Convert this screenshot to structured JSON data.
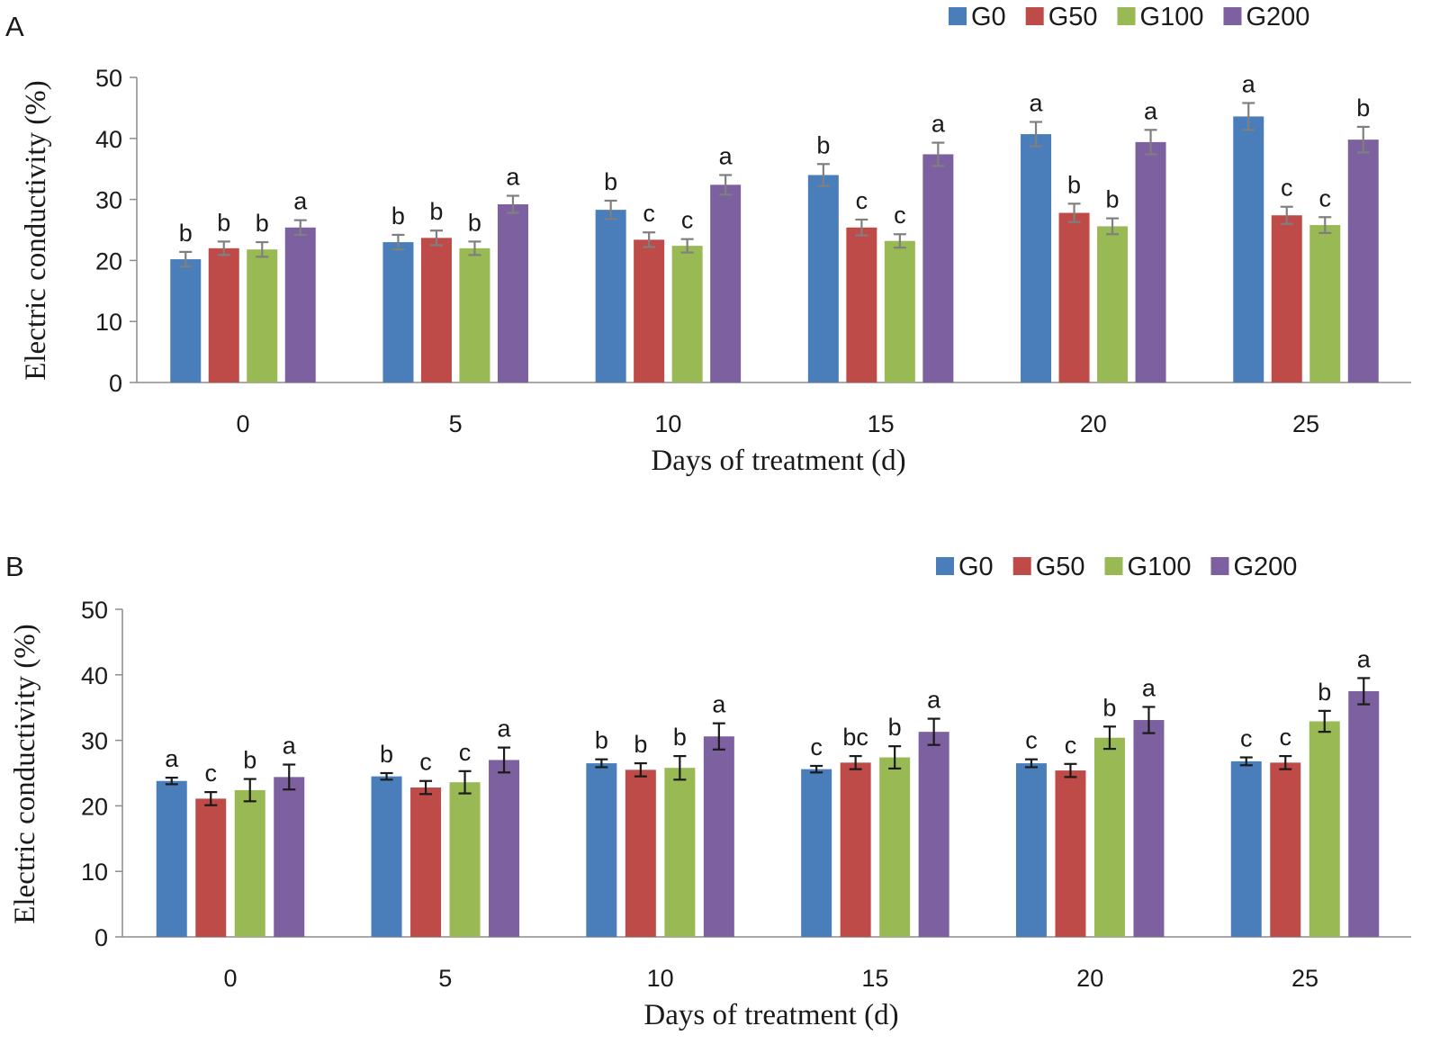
{
  "chart_data": [
    {
      "panel": "A",
      "type": "bar",
      "categories": [
        "0",
        "5",
        "10",
        "15",
        "20",
        "25"
      ],
      "xlabel": "Days of treatment (d)",
      "ylabel": "Electric conductivity (%)",
      "ylim": [
        0,
        50
      ],
      "yticks": [
        0,
        10,
        20,
        30,
        40,
        50
      ],
      "grid": false,
      "legend": "top-right",
      "error_bar_color": "#7f7f7f",
      "series": [
        {
          "name": "G0",
          "color": "#4a7ebb",
          "values": [
            20.2,
            23.0,
            28.3,
            34.0,
            40.7,
            43.6
          ],
          "errors": [
            1.2,
            1.2,
            1.5,
            1.8,
            2.0,
            2.2
          ],
          "letters": [
            "b",
            "b",
            "b",
            "b",
            "a",
            "a"
          ]
        },
        {
          "name": "G50",
          "color": "#be4b48",
          "values": [
            22.0,
            23.7,
            23.4,
            25.4,
            27.8,
            27.4
          ],
          "errors": [
            1.1,
            1.2,
            1.2,
            1.3,
            1.5,
            1.4
          ],
          "letters": [
            "b",
            "b",
            "c",
            "c",
            "b",
            "c"
          ]
        },
        {
          "name": "G100",
          "color": "#98b954",
          "values": [
            21.8,
            22.0,
            22.4,
            23.2,
            25.6,
            25.8
          ],
          "errors": [
            1.2,
            1.1,
            1.1,
            1.1,
            1.3,
            1.3
          ],
          "letters": [
            "b",
            "b",
            "c",
            "c",
            "b",
            "c"
          ]
        },
        {
          "name": "G200",
          "color": "#7d60a0",
          "values": [
            25.4,
            29.2,
            32.4,
            37.4,
            39.4,
            39.8
          ],
          "errors": [
            1.2,
            1.4,
            1.6,
            1.9,
            2.0,
            2.1
          ],
          "letters": [
            "a",
            "a",
            "a",
            "a",
            "a",
            "b"
          ]
        }
      ]
    },
    {
      "panel": "B",
      "type": "bar",
      "categories": [
        "0",
        "5",
        "10",
        "15",
        "20",
        "25"
      ],
      "xlabel": "Days of treatment (d)",
      "ylabel": "Electric conductivity (%)",
      "ylim": [
        0,
        50
      ],
      "yticks": [
        0,
        10,
        20,
        30,
        40,
        50
      ],
      "grid": false,
      "legend": "top-right",
      "error_bar_color": "#1a1a1a",
      "series": [
        {
          "name": "G0",
          "color": "#4a7ebb",
          "values": [
            23.8,
            24.5,
            26.5,
            25.6,
            26.5,
            26.8
          ],
          "errors": [
            0.5,
            0.5,
            0.6,
            0.5,
            0.6,
            0.6
          ],
          "letters": [
            "a",
            "b",
            "b",
            "c",
            "c",
            "c"
          ]
        },
        {
          "name": "G50",
          "color": "#be4b48",
          "values": [
            21.1,
            22.8,
            25.5,
            26.6,
            25.4,
            26.6
          ],
          "errors": [
            1.0,
            1.0,
            1.0,
            1.0,
            1.0,
            1.0
          ],
          "letters": [
            "c",
            "c",
            "b",
            "bc",
            "c",
            "c"
          ]
        },
        {
          "name": "G100",
          "color": "#98b954",
          "values": [
            22.4,
            23.6,
            25.8,
            27.4,
            30.4,
            32.9
          ],
          "errors": [
            1.7,
            1.7,
            1.8,
            1.7,
            1.7,
            1.6
          ],
          "letters": [
            "b",
            "c",
            "b",
            "b",
            "b",
            "b"
          ]
        },
        {
          "name": "G200",
          "color": "#7d60a0",
          "values": [
            24.4,
            27.0,
            30.6,
            31.3,
            33.1,
            37.5
          ],
          "errors": [
            1.9,
            1.9,
            2.0,
            2.0,
            2.0,
            2.0
          ],
          "letters": [
            "a",
            "a",
            "a",
            "a",
            "a",
            "a"
          ]
        }
      ]
    }
  ]
}
